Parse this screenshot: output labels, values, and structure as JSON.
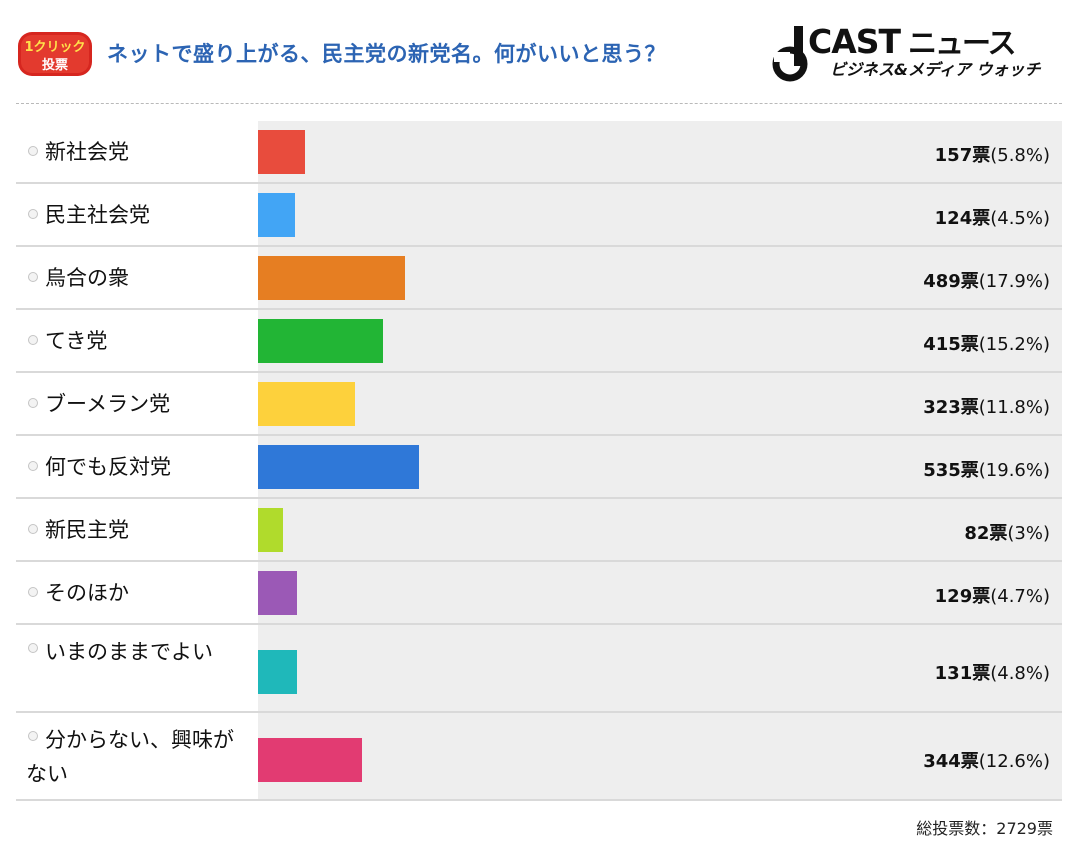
{
  "header": {
    "badge_line1": "1クリック",
    "badge_line2": "投票",
    "title": "ネットで盛り上がる、民主党の新党名。何がいいと思う？",
    "logo_main": "CAST",
    "logo_brand": "ニュース",
    "logo_sub": "ビジネス&メディア ウォッチ"
  },
  "chart_data": {
    "type": "bar",
    "orientation": "horizontal",
    "title": "ネットで盛り上がる、民主党の新党名。何がいいと思う？",
    "categories": [
      "新社会党",
      "民主社会党",
      "烏合の衆",
      "てき党",
      "ブーメラン党",
      "何でも反対党",
      "新民主党",
      "そのほか",
      "いまのままでよい",
      "分からない、興味がない"
    ],
    "values": [
      157,
      124,
      489,
      415,
      323,
      535,
      82,
      129,
      131,
      344
    ],
    "unit": "票",
    "rows": [
      {
        "label": "新社会党",
        "votes": "157",
        "unit": "票",
        "pct": "(5.8%)",
        "color": "#e84c3d"
      },
      {
        "label": "民主社会党",
        "votes": "124",
        "unit": "票",
        "pct": "(4.5%)",
        "color": "#42a5f5"
      },
      {
        "label": "烏合の衆",
        "votes": "489",
        "unit": "票",
        "pct": "(17.9%)",
        "color": "#e67e22"
      },
      {
        "label": "てき党",
        "votes": "415",
        "unit": "票",
        "pct": "(15.2%)",
        "color": "#22b535"
      },
      {
        "label": "ブーメラン党",
        "votes": "323",
        "unit": "票",
        "pct": "(11.8%)",
        "color": "#fdd13c"
      },
      {
        "label": "何でも反対党",
        "votes": "535",
        "unit": "票",
        "pct": "(19.6%)",
        "color": "#2f78d8"
      },
      {
        "label": "新民主党",
        "votes": "82",
        "unit": "票",
        "pct": "(3%)",
        "color": "#b0db2c"
      },
      {
        "label": "そのほか",
        "votes": "129",
        "unit": "票",
        "pct": "(4.7%)",
        "color": "#9b59b6"
      },
      {
        "label": "いまのままでよい",
        "votes": "131",
        "unit": "票",
        "pct": "(4.8%)",
        "color": "#1fb8ba"
      },
      {
        "label": "分からない、興味がない",
        "votes": "344",
        "unit": "票",
        "pct": "(12.6%)",
        "color": "#e23b72"
      }
    ],
    "total_label": "総投票数：2729票",
    "total": 2729
  }
}
